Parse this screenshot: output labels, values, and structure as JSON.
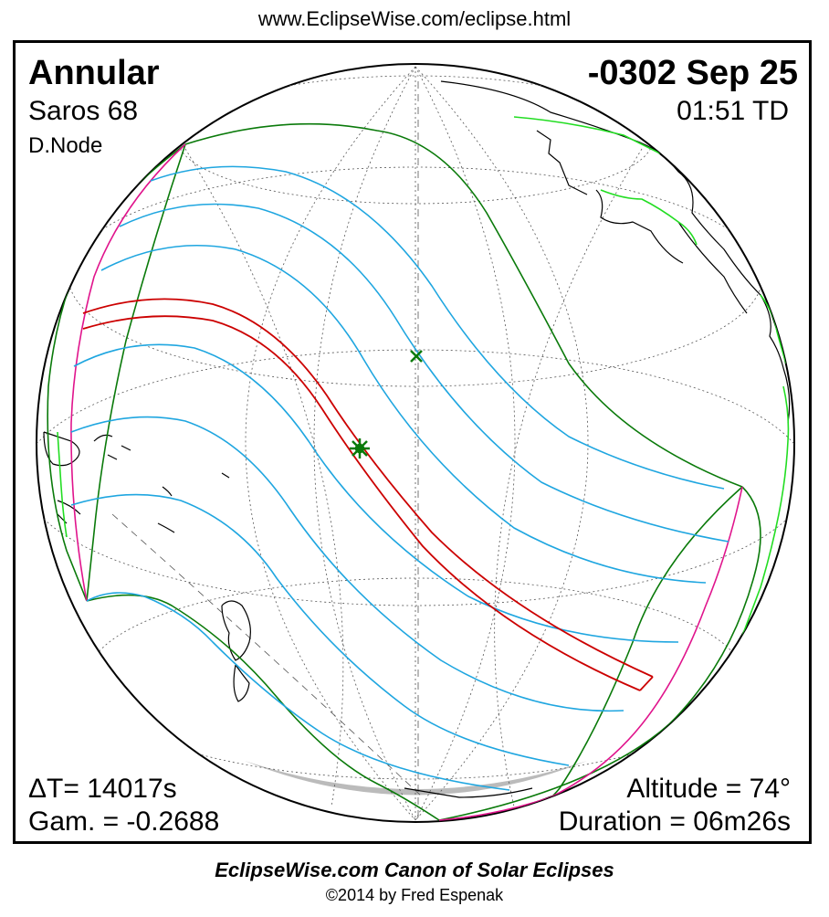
{
  "header": {
    "url": "www.EclipseWise.com/eclipse.html"
  },
  "eclipse": {
    "type": "Annular",
    "date": "-0302 Sep 25",
    "saros": "Saros  68",
    "time": "01:51 TD",
    "node": "D.Node",
    "delta_t": "ΔT=  14017s",
    "gamma": "Gam. = -0.2688",
    "altitude": "Altitude = 74°",
    "duration": "Duration = 06m26s"
  },
  "footer": {
    "title": "EclipseWise.com Canon of Solar Eclipses",
    "copyright": "©2014 by Fred Espenak"
  },
  "colors": {
    "central_path": "#cc0000",
    "partial_lines": "#1fa6e0",
    "outer_limits": "#0a7a0a",
    "rise_set": "#e0148c",
    "coastline": "#000000",
    "coast_highlight": "#22dd22"
  },
  "markers": {
    "greatest_eclipse": "star-marker",
    "subsolar_point": "x-marker"
  }
}
